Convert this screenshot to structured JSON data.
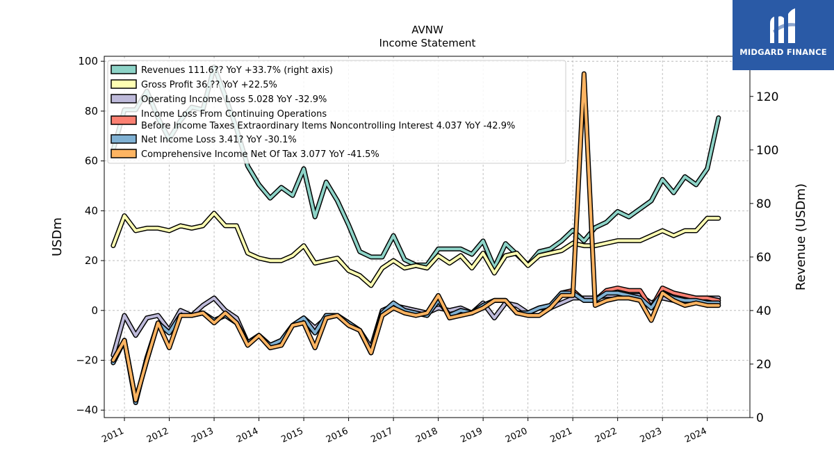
{
  "logo": {
    "text": "MIDGARD FINANCE",
    "background": "#2a5aa6"
  },
  "chart_data": {
    "type": "line",
    "title": "AVNW",
    "subtitle": "Income Statement",
    "ylabel": "USDm",
    "ylabel_right": "Revenue (USDm)",
    "ylim": [
      -43,
      102
    ],
    "ylim_right": [
      0,
      135
    ],
    "yticks": [
      -40,
      -20,
      0,
      20,
      40,
      60,
      80,
      100
    ],
    "yticks_right": [
      0,
      20,
      40,
      60,
      80,
      100,
      120
    ],
    "xlim": [
      2010.55,
      2024.95
    ],
    "xticks": [
      "2011",
      "2012",
      "2013",
      "2014",
      "2015",
      "2016",
      "2017",
      "2018",
      "2019",
      "2020",
      "2021",
      "2022",
      "2023",
      "2024"
    ],
    "grid": true,
    "legend_position": "top-left",
    "x": [
      2010.75,
      2011.0,
      2011.25,
      2011.5,
      2011.75,
      2012.0,
      2012.25,
      2012.5,
      2012.75,
      2013.0,
      2013.25,
      2013.5,
      2013.75,
      2014.0,
      2014.25,
      2014.5,
      2014.75,
      2015.0,
      2015.25,
      2015.5,
      2015.75,
      2016.0,
      2016.25,
      2016.5,
      2016.75,
      2017.0,
      2017.25,
      2017.5,
      2017.75,
      2018.0,
      2018.25,
      2018.5,
      2018.75,
      2019.0,
      2019.25,
      2019.5,
      2019.75,
      2020.0,
      2020.25,
      2020.5,
      2020.75,
      2021.0,
      2021.25,
      2021.5,
      2021.75,
      2022.0,
      2022.25,
      2022.5,
      2022.75,
      2023.0,
      2023.25,
      2023.5,
      2023.75,
      2024.0,
      2024.25
    ],
    "series": [
      {
        "name": "Revenues",
        "legend": "Revenues  111.6?? YoY +33.7% (right axis)",
        "axis": "right",
        "color": "#8dd3c7",
        "values": [
          100,
          115,
          115,
          122,
          112,
          104,
          111,
          116,
          115,
          131,
          120,
          108,
          94,
          87,
          82,
          86,
          83,
          93,
          75,
          88,
          81,
          72,
          62,
          60,
          60,
          68,
          59,
          57,
          57,
          63,
          63,
          63,
          61,
          66,
          56,
          65,
          61,
          57,
          62,
          63,
          66,
          70,
          66,
          71,
          73,
          77,
          75,
          78,
          81,
          89,
          84,
          90,
          87,
          93,
          112
        ]
      },
      {
        "name": "Gross Profit",
        "legend": "Gross Profit  36.??  YoY +22.5%",
        "axis": "left",
        "color": "#ffffb3",
        "values": [
          26,
          38,
          32,
          33,
          33,
          32,
          34,
          33,
          34,
          39,
          34,
          34,
          23,
          21,
          20,
          20,
          22,
          26,
          19,
          20,
          21,
          16,
          14,
          10,
          17,
          20,
          17,
          18,
          17,
          22,
          19,
          22,
          17,
          23,
          15,
          22,
          23,
          18,
          22,
          23,
          24,
          27,
          26,
          26,
          27,
          28,
          28,
          28,
          30,
          32,
          30,
          32,
          32,
          37,
          37
        ]
      },
      {
        "name": "Operating Income Loss",
        "legend": "Operating Income Loss  5.028 YoY -32.9%",
        "axis": "left",
        "color": "#bebada",
        "values": [
          -18,
          -2,
          -10,
          -3,
          -2,
          -8,
          0,
          -2,
          2,
          5,
          0,
          -3,
          -13,
          -10,
          -14,
          -12,
          -6,
          -3,
          -7,
          -3,
          -2,
          -5,
          -8,
          -15,
          0,
          2,
          1,
          0,
          -1,
          1,
          0,
          1,
          -1,
          3,
          -3,
          3,
          2,
          -1,
          1,
          1,
          3,
          5,
          5,
          5,
          6,
          6,
          6,
          6,
          3,
          5,
          4,
          4,
          5,
          5,
          5
        ]
      },
      {
        "name": "Income Loss From Continuing Operations Before Income Taxes Extraordinary Items Noncontrolling Interest",
        "legend_line1": "Income Loss From Continuing Operations",
        "legend_line2": "Before Income Taxes Extraordinary Items Noncontrolling Interest  4.037 YoY -42.9%",
        "axis": "left",
        "color": "#fb8072",
        "values": [
          -20,
          -12,
          -36,
          -20,
          -5,
          -9,
          -2,
          -2,
          -1,
          -4,
          -2,
          -5,
          -13,
          -10,
          -14,
          -12,
          -6,
          -4,
          -9,
          -2,
          -2,
          -5,
          -8,
          -17,
          -1,
          2,
          0,
          -1,
          -2,
          4,
          -2,
          0,
          -1,
          2,
          4,
          4,
          -1,
          -1,
          1,
          2,
          7,
          8,
          4,
          4,
          8,
          9,
          8,
          8,
          1,
          9,
          7,
          6,
          5,
          5,
          4
        ]
      },
      {
        "name": "Net Income Loss",
        "legend": "Net Income Loss  3.41? YoY -30.1%",
        "axis": "left",
        "color": "#80b1d3",
        "values": [
          -21,
          -12,
          -37,
          -19,
          -5,
          -9,
          -2,
          -2,
          -1,
          -4,
          -2,
          -5,
          -13,
          -10,
          -14,
          -12,
          -6,
          -3,
          -9,
          -2,
          -2,
          -5,
          -8,
          -17,
          -1,
          3,
          0,
          -1,
          -2,
          4,
          -2,
          0,
          -1,
          2,
          4,
          4,
          -1,
          -1,
          1,
          2,
          7,
          7,
          4,
          4,
          7,
          7,
          6,
          5,
          1,
          7,
          5,
          4,
          4,
          3,
          3
        ]
      },
      {
        "name": "Comprehensive Income Net Of Tax",
        "legend": "Comprehensive Income Net Of Tax  3.077 YoY -41.5%",
        "axis": "left",
        "color": "#fdb462",
        "values": [
          -20,
          -12,
          -36,
          -20,
          -5,
          -15,
          -2,
          -2,
          -1,
          -5,
          -1,
          -5,
          -14,
          -10,
          -15,
          -14,
          -6,
          -5,
          -15,
          -3,
          -2,
          -6,
          -8,
          -17,
          -2,
          1,
          -1,
          -2,
          -1,
          6,
          -3,
          -2,
          -1,
          1,
          4,
          4,
          -1,
          -2,
          -2,
          1,
          6,
          6,
          95,
          2,
          4,
          5,
          5,
          4,
          -4,
          7,
          4,
          2,
          3,
          2,
          2
        ]
      }
    ]
  }
}
